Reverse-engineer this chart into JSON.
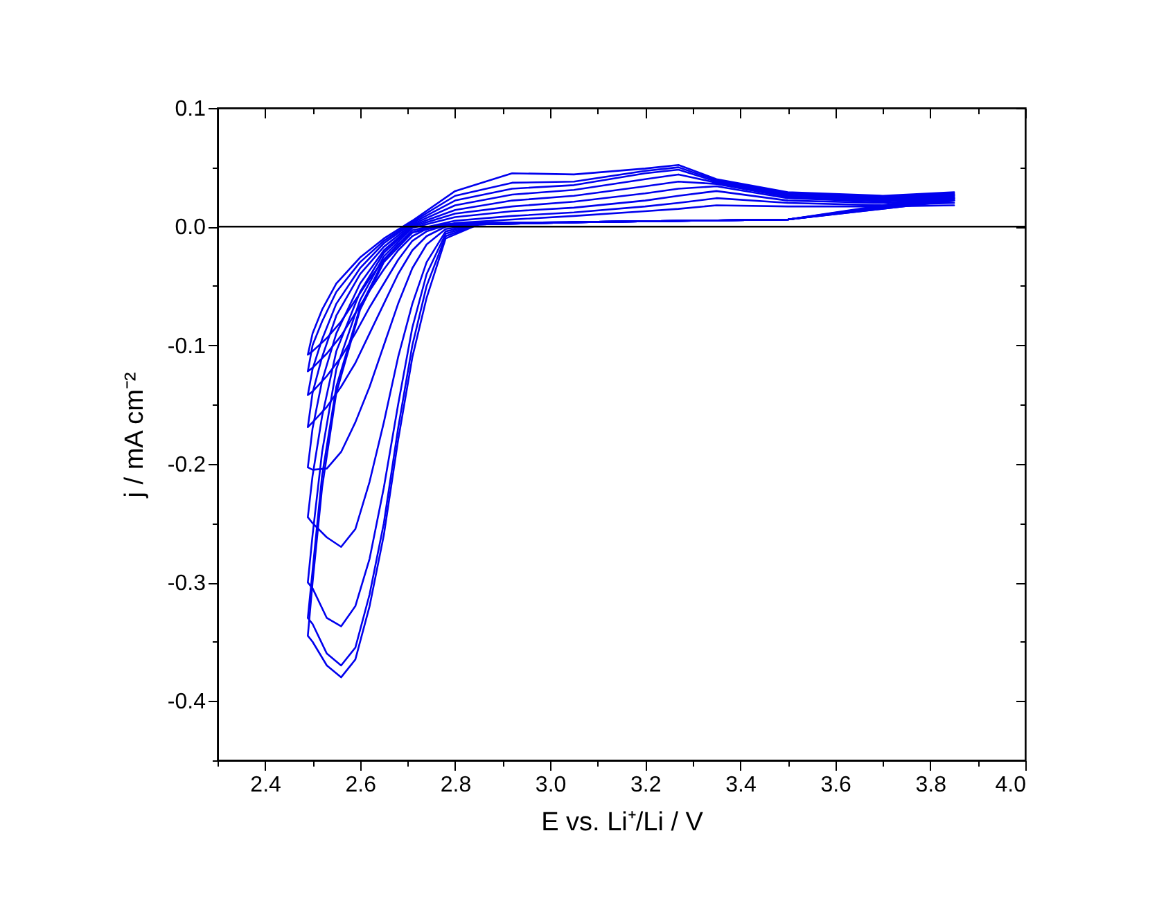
{
  "chart_data": {
    "type": "line",
    "xlabel": "E vs. Li⁺/Li / V",
    "ylabel": "j / mA cm⁻²",
    "x": [
      3.85,
      3.5,
      3.1,
      2.85,
      2.78,
      2.74,
      2.71,
      2.68,
      2.65,
      2.62,
      2.59,
      2.56,
      2.53,
      2.5,
      2.49,
      2.49,
      2.5,
      2.52,
      2.55,
      2.6,
      2.65,
      2.71,
      2.8,
      2.92,
      3.05,
      3.2,
      3.27,
      3.35,
      3.5,
      3.7,
      3.85
    ],
    "series": [
      {
        "color": "#0000ee",
        "values": [
          0.022,
          0.006,
          0.004,
          0.002,
          -0.01,
          -0.06,
          -0.11,
          -0.18,
          -0.26,
          -0.32,
          -0.365,
          -0.38,
          -0.37,
          -0.35,
          -0.345,
          -0.345,
          -0.3,
          -0.22,
          -0.14,
          -0.07,
          -0.03,
          -0.005,
          0.003,
          0.006,
          0.009,
          0.013,
          0.015,
          0.018,
          0.017,
          0.017,
          0.018
        ]
      },
      {
        "color": "#0000ee",
        "values": [
          0.022,
          0.006,
          0.004,
          0.002,
          -0.008,
          -0.05,
          -0.1,
          -0.17,
          -0.25,
          -0.31,
          -0.355,
          -0.37,
          -0.36,
          -0.335,
          -0.33,
          -0.33,
          -0.29,
          -0.21,
          -0.135,
          -0.068,
          -0.028,
          -0.003,
          0.005,
          0.009,
          0.012,
          0.017,
          0.02,
          0.024,
          0.02,
          0.018,
          0.02
        ]
      },
      {
        "color": "#0000ee",
        "values": [
          0.023,
          0.006,
          0.004,
          0.002,
          -0.006,
          -0.04,
          -0.085,
          -0.15,
          -0.22,
          -0.28,
          -0.32,
          -0.337,
          -0.33,
          -0.305,
          -0.3,
          -0.3,
          -0.26,
          -0.19,
          -0.12,
          -0.062,
          -0.025,
          -0.001,
          0.008,
          0.013,
          0.016,
          0.022,
          0.026,
          0.03,
          0.022,
          0.02,
          0.022
        ]
      },
      {
        "color": "#0000ee",
        "values": [
          0.023,
          0.006,
          0.004,
          0.002,
          -0.004,
          -0.03,
          -0.065,
          -0.11,
          -0.165,
          -0.215,
          -0.255,
          -0.27,
          -0.262,
          -0.25,
          -0.245,
          -0.245,
          -0.21,
          -0.16,
          -0.105,
          -0.055,
          -0.022,
          0,
          0.011,
          0.017,
          0.021,
          0.028,
          0.032,
          0.034,
          0.024,
          0.021,
          0.024
        ]
      },
      {
        "color": "#0000ee",
        "values": [
          0.024,
          0.006,
          0.004,
          0.002,
          -0.002,
          -0.015,
          -0.035,
          -0.065,
          -0.1,
          -0.135,
          -0.165,
          -0.19,
          -0.204,
          -0.205,
          -0.203,
          -0.203,
          -0.17,
          -0.13,
          -0.09,
          -0.048,
          -0.02,
          0.001,
          0.014,
          0.022,
          0.026,
          0.034,
          0.038,
          0.036,
          0.025,
          0.022,
          0.025
        ]
      },
      {
        "color": "#0000ee",
        "values": [
          0.024,
          0.006,
          0.004,
          0.002,
          0,
          -0.008,
          -0.02,
          -0.04,
          -0.065,
          -0.09,
          -0.115,
          -0.135,
          -0.152,
          -0.165,
          -0.169,
          -0.169,
          -0.14,
          -0.11,
          -0.075,
          -0.04,
          -0.017,
          0.002,
          0.018,
          0.027,
          0.031,
          0.04,
          0.044,
          0.037,
          0.026,
          0.023,
          0.026
        ]
      },
      {
        "color": "#0000ee",
        "values": [
          0.025,
          0.006,
          0.004,
          0.003,
          0.001,
          -0.004,
          -0.012,
          -0.028,
          -0.048,
          -0.068,
          -0.09,
          -0.11,
          -0.126,
          -0.139,
          -0.142,
          -0.142,
          -0.12,
          -0.095,
          -0.065,
          -0.035,
          -0.014,
          0.003,
          0.022,
          0.032,
          0.035,
          0.045,
          0.048,
          0.038,
          0.027,
          0.024,
          0.027
        ]
      },
      {
        "color": "#0000ee",
        "values": [
          0.026,
          0.006,
          0.004,
          0.003,
          0.002,
          -0.002,
          -0.008,
          -0.02,
          -0.036,
          -0.054,
          -0.073,
          -0.092,
          -0.107,
          -0.119,
          -0.122,
          -0.122,
          -0.1,
          -0.08,
          -0.055,
          -0.03,
          -0.012,
          0.004,
          0.026,
          0.037,
          0.038,
          0.047,
          0.05,
          0.039,
          0.028,
          0.025,
          0.028
        ]
      },
      {
        "color": "#0000ee",
        "values": [
          0.027,
          0.006,
          0.004,
          0.003,
          0.002,
          -0.001,
          -0.005,
          -0.015,
          -0.028,
          -0.044,
          -0.062,
          -0.08,
          -0.094,
          -0.105,
          -0.108,
          -0.108,
          -0.09,
          -0.07,
          -0.048,
          -0.026,
          -0.01,
          0.005,
          0.03,
          0.045,
          0.044,
          0.049,
          0.052,
          0.04,
          0.029,
          0.026,
          0.029
        ]
      }
    ],
    "xlim": [
      2.3,
      4.0
    ],
    "xticks": [
      {
        "value": 2.3,
        "label": null
      },
      {
        "value": 2.4,
        "label": "2.4"
      },
      {
        "value": 2.5,
        "label": null
      },
      {
        "value": 2.6,
        "label": "2.6"
      },
      {
        "value": 2.7,
        "label": null
      },
      {
        "value": 2.8,
        "label": "2.8"
      },
      {
        "value": 2.9,
        "label": null
      },
      {
        "value": 3.0,
        "label": "3.0"
      },
      {
        "value": 3.1,
        "label": null
      },
      {
        "value": 3.2,
        "label": "3.2"
      },
      {
        "value": 3.3,
        "label": null
      },
      {
        "value": 3.4,
        "label": "3.4"
      },
      {
        "value": 3.5,
        "label": null
      },
      {
        "value": 3.6,
        "label": "3.6"
      },
      {
        "value": 3.7,
        "label": null
      },
      {
        "value": 3.8,
        "label": "3.8"
      },
      {
        "value": 3.9,
        "label": null
      },
      {
        "value": 4.0,
        "label": "4.0"
      }
    ],
    "ylim": [
      -0.45,
      0.1
    ],
    "yticks": [
      {
        "value": 0.1,
        "label": "0.1"
      },
      {
        "value": 0.05,
        "label": null
      },
      {
        "value": 0,
        "label": "0.0"
      },
      {
        "value": -0.05,
        "label": null
      },
      {
        "value": -0.1,
        "label": "-0.1"
      },
      {
        "value": -0.15,
        "label": null
      },
      {
        "value": -0.2,
        "label": "-0.2"
      },
      {
        "value": -0.25,
        "label": null
      },
      {
        "value": -0.3,
        "label": "-0.3"
      },
      {
        "value": -0.35,
        "label": null
      },
      {
        "value": -0.4,
        "label": "-0.4"
      },
      {
        "value": -0.45,
        "label": null
      }
    ],
    "ref_lines": [
      {
        "axis": "y",
        "value": 0,
        "color": "#000000"
      }
    ],
    "grid": false,
    "marker": "none",
    "line_style": "solid"
  }
}
